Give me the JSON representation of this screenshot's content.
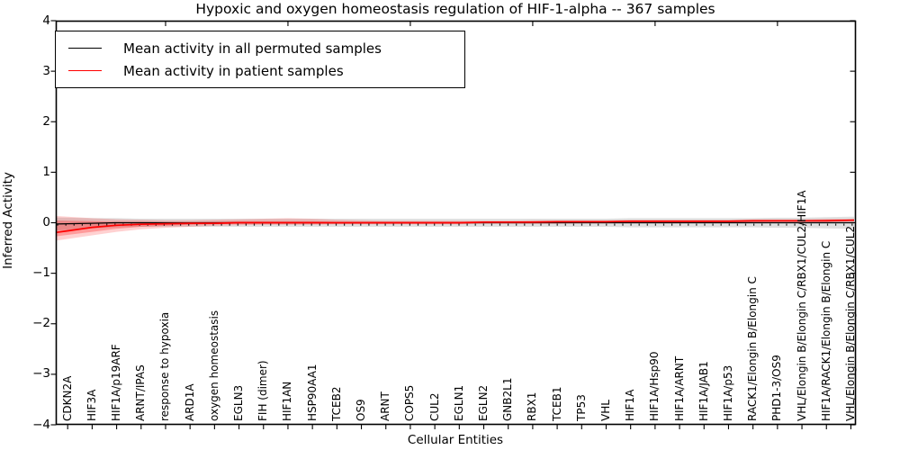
{
  "figure": {
    "title": "Hypoxic and oxygen homeostasis regulation of HIF-1-alpha -- 367 samples"
  },
  "legend": {
    "items": [
      {
        "label": "Mean activity in all permuted samples",
        "color": "#000000"
      },
      {
        "label": "Mean activity in patient samples",
        "color": "#ff0000"
      }
    ]
  },
  "axes": {
    "ylabel": "Inferred Activity",
    "xlabel": "Cellular Entities",
    "ytick_labels": [
      "4",
      "3",
      "2",
      "1",
      "0",
      "−1",
      "−2",
      "−3",
      "−4"
    ]
  },
  "chart_data": {
    "type": "line",
    "title": "Hypoxic and oxygen homeostasis regulation of HIF-1-alpha -- 367 samples",
    "xlabel": "Cellular Entities",
    "ylabel": "Inferred Activity",
    "ylim": [
      -4,
      4
    ],
    "yticks": [
      4,
      3,
      2,
      1,
      0,
      -1,
      -2,
      -3,
      -4
    ],
    "grid": false,
    "legend_position": "upper left",
    "colors": {
      "permuted": "#000000",
      "patient": "#ff0000",
      "permuted_band": "#000000",
      "patient_band": "#ff0000"
    },
    "categories": [
      "CDKN2A",
      "HIF3A",
      "HIF1A/p19ARF",
      "ARNT/IPAS",
      "response to hypoxia",
      "ARD1A",
      "oxygen homeostasis",
      "EGLN3",
      "FIH (dimer)",
      "HIF1AN",
      "HSP90AA1",
      "TCEB2",
      "OS9",
      "ARNT",
      "COPS5",
      "CUL2",
      "EGLN1",
      "EGLN2",
      "GNB2L1",
      "RBX1",
      "TCEB1",
      "TP53",
      "VHL",
      "HIF1A",
      "HIF1A/Hsp90",
      "HIF1A/ARNT",
      "HIF1A/JAB1",
      "HIF1A/p53",
      "RACK1/Elongin B/Elongin C",
      "PHD1-3/OS9",
      "VHL/Elongin B/Elongin C/RBX1/CUL2/HIF1A",
      "HIF1A/RACK1/Elongin B/Elongin C",
      "VHL/Elongin B/Elongin C/RBX1/CUL2"
    ],
    "series": [
      {
        "name": "Mean activity in all permuted samples",
        "mean": [
          -0.02,
          -0.01,
          0,
          0,
          0,
          0,
          0,
          0,
          0,
          0,
          0,
          0,
          0,
          0,
          0,
          0,
          0,
          0,
          0,
          0,
          0,
          0,
          0,
          0,
          0,
          0,
          0,
          0,
          0,
          0,
          0,
          0,
          0
        ],
        "band_halfwidth": [
          0.12,
          0.1,
          0.09,
          0.08,
          0.08,
          0.08,
          0.08,
          0.08,
          0.08,
          0.08,
          0.08,
          0.08,
          0.08,
          0.08,
          0.08,
          0.08,
          0.08,
          0.08,
          0.08,
          0.08,
          0.08,
          0.08,
          0.08,
          0.09,
          0.09,
          0.09,
          0.09,
          0.09,
          0.09,
          0.1,
          0.1,
          0.11,
          0.12
        ]
      },
      {
        "name": "Mean activity in patient samples",
        "mean": [
          -0.16,
          -0.09,
          -0.05,
          -0.03,
          -0.02,
          -0.01,
          -0.01,
          0,
          0,
          0,
          0,
          0,
          0,
          0,
          0,
          0,
          0,
          0.01,
          0.01,
          0.01,
          0.02,
          0.02,
          0.02,
          0.03,
          0.03,
          0.03,
          0.03,
          0.03,
          0.04,
          0.04,
          0.04,
          0.04,
          0.05
        ],
        "band_upper": [
          0.12,
          0.09,
          0.07,
          0.06,
          0.05,
          0.05,
          0.06,
          0.07,
          0.08,
          0.09,
          0.08,
          0.06,
          0.05,
          0.04,
          0.04,
          0.04,
          0.04,
          0.04,
          0.04,
          0.05,
          0.05,
          0.05,
          0.05,
          0.06,
          0.06,
          0.06,
          0.06,
          0.06,
          0.07,
          0.07,
          0.07,
          0.08,
          0.08
        ],
        "band_lower": [
          -0.32,
          -0.25,
          -0.18,
          -0.13,
          -0.1,
          -0.08,
          -0.06,
          -0.05,
          -0.04,
          -0.04,
          -0.04,
          -0.03,
          -0.03,
          -0.03,
          -0.03,
          -0.03,
          -0.03,
          -0.02,
          -0.02,
          -0.02,
          -0.02,
          -0.01,
          -0.01,
          -0.01,
          -0.01,
          -0.01,
          0,
          0,
          0,
          0,
          0.01,
          0.01,
          0.02
        ],
        "inner_band_upper": [
          0.04,
          0.03,
          0.02,
          0.02,
          0.01,
          0.01,
          0.02,
          0.03,
          0.03,
          0.03,
          0.03,
          0.02,
          0.02,
          0.02,
          0.02,
          0.02,
          0.02,
          0.02,
          0.02,
          0.03,
          0.03,
          0.03,
          0.03,
          0.04,
          0.04,
          0.04,
          0.04,
          0.04,
          0.05,
          0.05,
          0.05,
          0.06,
          0.06
        ],
        "inner_band_lower": [
          -0.24,
          -0.18,
          -0.12,
          -0.08,
          -0.06,
          -0.04,
          -0.03,
          -0.02,
          -0.02,
          -0.02,
          -0.02,
          -0.02,
          -0.02,
          -0.02,
          -0.02,
          -0.02,
          -0.02,
          -0.01,
          -0.01,
          -0.01,
          -0.01,
          0,
          0,
          0,
          0,
          0,
          0.01,
          0.01,
          0.01,
          0.02,
          0.02,
          0.02,
          0.03
        ]
      }
    ]
  }
}
